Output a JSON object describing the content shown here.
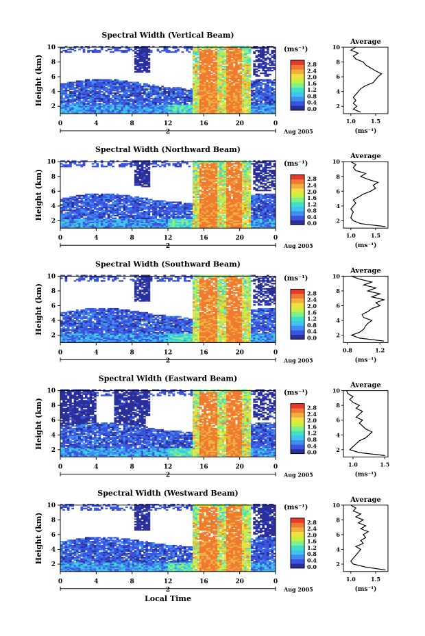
{
  "figure": {
    "xlabel": "Local Time",
    "ylabel": "Height (km)",
    "date_label": "Aug 2005",
    "day_label": "2",
    "x_ticks": [
      "0",
      "4",
      "8",
      "12",
      "16",
      "20",
      "0"
    ],
    "y_ticks": [
      "2",
      "4",
      "6",
      "8",
      "10"
    ],
    "colorbar_unit": "(ms⁻¹)",
    "colorbar_ticks": [
      "0.0",
      "0.4",
      "0.8",
      "1.2",
      "1.6",
      "2.0",
      "2.4",
      "2.8"
    ],
    "avg_title": "Average",
    "avg_unit": "(ms⁻¹)",
    "avg_y_ticks": [
      "2",
      "4",
      "6",
      "8",
      "10"
    ],
    "colorscale": [
      "#2b2f9a",
      "#3b55e0",
      "#3f8ff0",
      "#3fc3f0",
      "#40e0c8",
      "#7ef08c",
      "#c8f040",
      "#f0e040",
      "#f0b040",
      "#f07a30",
      "#e83a2a"
    ]
  },
  "chart_data": [
    {
      "type": "heatmap",
      "title": "Spectral Width (Vertical Beam)",
      "xlabel": "Local Time",
      "ylabel": "Height (km)",
      "xlim": [
        0,
        24
      ],
      "ylim": [
        1,
        10
      ],
      "zlim": [
        0,
        2.8
      ],
      "average": {
        "xlim": [
          0.85,
          1.75
        ],
        "x_ticks": [
          "1.0",
          "1.5"
        ],
        "x_tick_values": [
          1.0,
          1.5
        ],
        "heights": [
          1.2,
          1.6,
          2.0,
          2.4,
          2.8,
          3.2,
          3.6,
          4.0,
          4.4,
          4.8,
          5.2,
          5.6,
          6.0,
          6.4,
          6.8,
          7.2,
          7.6,
          8.0,
          8.4,
          8.8,
          9.2,
          9.6,
          10.0
        ],
        "values": [
          1.2,
          1.05,
          1.12,
          1.05,
          1.1,
          1.05,
          1.1,
          1.15,
          1.2,
          1.3,
          1.45,
          1.5,
          1.55,
          1.62,
          1.5,
          1.4,
          1.3,
          1.25,
          1.1,
          1.05,
          1.15,
          1.0,
          1.1
        ]
      }
    },
    {
      "type": "heatmap",
      "title": "Spectral Width (Northward Beam)",
      "xlabel": "Local Time",
      "ylabel": "Height (km)",
      "xlim": [
        0,
        24
      ],
      "ylim": [
        1,
        10
      ],
      "zlim": [
        0,
        2.8
      ],
      "average": {
        "xlim": [
          0.85,
          1.75
        ],
        "x_ticks": [
          "1.0",
          "1.5"
        ],
        "x_tick_values": [
          1.0,
          1.5
        ],
        "heights": [
          1.2,
          1.6,
          2.0,
          2.4,
          2.8,
          3.2,
          3.6,
          4.0,
          4.4,
          4.8,
          5.2,
          5.6,
          6.0,
          6.4,
          6.8,
          7.2,
          7.6,
          8.0,
          8.4,
          8.8,
          9.2,
          9.6,
          10.0
        ],
        "values": [
          1.7,
          1.2,
          1.05,
          1.0,
          1.02,
          1.05,
          1.0,
          1.05,
          1.1,
          1.05,
          1.15,
          1.25,
          1.4,
          1.5,
          1.45,
          1.55,
          1.35,
          1.2,
          1.3,
          1.1,
          1.05,
          1.1,
          1.0
        ]
      }
    },
    {
      "type": "heatmap",
      "title": "Spectral Width (Southward Beam)",
      "xlabel": "Local Time",
      "ylabel": "Height (km)",
      "xlim": [
        0,
        24
      ],
      "ylim": [
        1,
        10
      ],
      "zlim": [
        0,
        2.8
      ],
      "average": {
        "xlim": [
          0.75,
          1.3
        ],
        "x_ticks": [
          "0.8",
          "1.2"
        ],
        "x_tick_values": [
          0.8,
          1.2
        ],
        "heights": [
          1.2,
          1.6,
          2.0,
          2.4,
          2.8,
          3.2,
          3.6,
          4.0,
          4.4,
          4.8,
          5.2,
          5.6,
          6.0,
          6.4,
          6.8,
          7.2,
          7.6,
          8.0,
          8.4,
          8.8,
          9.2,
          9.6,
          10.0
        ],
        "values": [
          1.25,
          0.95,
          0.85,
          0.95,
          1.0,
          1.02,
          1.05,
          1.1,
          1.0,
          0.98,
          1.05,
          1.1,
          1.2,
          1.15,
          1.25,
          1.1,
          1.2,
          1.05,
          1.15,
          1.0,
          1.1,
          0.95,
          0.85
        ]
      }
    },
    {
      "type": "heatmap",
      "title": "Spectral Width (Eastward Beam)",
      "xlabel": "Local Time",
      "ylabel": "Height (km)",
      "xlim": [
        0,
        24
      ],
      "ylim": [
        1,
        10
      ],
      "zlim": [
        0,
        2.8
      ],
      "average": {
        "xlim": [
          0.85,
          1.55
        ],
        "x_ticks": [
          "1.0",
          "1.5"
        ],
        "x_tick_values": [
          1.0,
          1.5
        ],
        "heights": [
          1.2,
          1.6,
          2.0,
          2.4,
          2.8,
          3.2,
          3.6,
          4.0,
          4.4,
          4.8,
          5.2,
          5.6,
          6.0,
          6.4,
          6.8,
          7.2,
          7.6,
          8.0,
          8.4,
          8.8,
          9.2,
          9.6,
          10.0
        ],
        "values": [
          1.5,
          1.1,
          0.95,
          1.0,
          1.05,
          1.1,
          1.2,
          1.25,
          1.3,
          1.2,
          1.15,
          1.1,
          1.15,
          1.05,
          1.1,
          1.15,
          1.05,
          1.1,
          1.0,
          0.95,
          1.0,
          0.92,
          0.9
        ]
      }
    },
    {
      "type": "heatmap",
      "title": "Spectral Width (Westward Beam)",
      "xlabel": "Local Time",
      "ylabel": "Height (km)",
      "xlim": [
        0,
        24
      ],
      "ylim": [
        1,
        10
      ],
      "zlim": [
        0,
        2.8
      ],
      "average": {
        "xlim": [
          0.85,
          1.75
        ],
        "x_ticks": [
          "1.0",
          "1.5"
        ],
        "x_tick_values": [
          1.0,
          1.5
        ],
        "heights": [
          1.2,
          1.6,
          2.0,
          2.4,
          2.8,
          3.2,
          3.6,
          4.0,
          4.4,
          4.8,
          5.2,
          5.6,
          6.0,
          6.4,
          6.8,
          7.2,
          7.6,
          8.0,
          8.4,
          8.8,
          9.2,
          9.6,
          10.0
        ],
        "values": [
          1.7,
          1.3,
          1.05,
          1.0,
          1.05,
          1.1,
          1.15,
          1.2,
          1.1,
          1.25,
          1.2,
          1.3,
          1.25,
          1.35,
          1.2,
          1.3,
          1.15,
          1.25,
          1.1,
          1.2,
          1.05,
          1.1,
          1.0
        ]
      }
    }
  ]
}
